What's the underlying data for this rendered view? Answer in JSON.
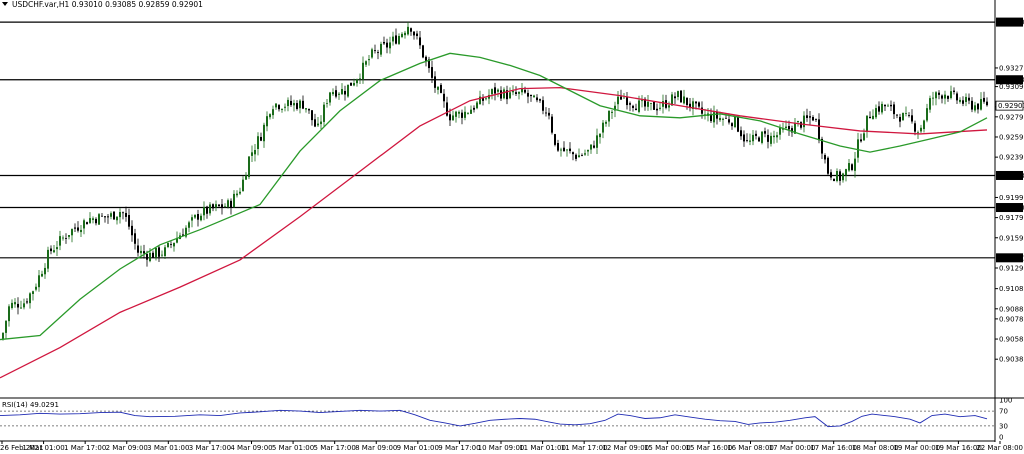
{
  "window": {
    "symbol_line": "USDCHF.var,H1  0.93010 0.93085 0.92859 0.92901",
    "menu_icon": "triangle-down-icon"
  },
  "chart_data": [
    {
      "type": "candlestick",
      "symbol": "USDCHF.var",
      "timeframe": "H1",
      "ohlc": {
        "open": 0.9301,
        "high": 0.93085,
        "low": 0.92859,
        "close": 0.92901
      },
      "ylim": [
        0.9,
        0.9385
      ],
      "y_ticks": [
        "0.93275",
        "0.93090",
        "0.92890",
        "0.92790",
        "0.92590",
        "0.92390",
        "0.91990",
        "0.91790",
        "0.91590",
        "0.91290",
        "0.91085",
        "0.90885",
        "0.90785",
        "0.90585",
        "0.90385"
      ],
      "y_tick_values": [
        0.93275,
        0.9309,
        0.9289,
        0.9279,
        0.9259,
        0.9239,
        0.9199,
        0.9179,
        0.9159,
        0.9129,
        0.91085,
        0.90885,
        0.90785,
        0.90585,
        0.90385
      ],
      "x_ticks": [
        "26 Feb 2021",
        "1 Mar 01:00",
        "1 Mar 17:00",
        "2 Mar 09:00",
        "3 Mar 01:00",
        "3 Mar 17:00",
        "4 Mar 09:00",
        "5 Mar 01:00",
        "5 Mar 17:00",
        "8 Mar 09:00",
        "9 Mar 01:00",
        "9 Mar 17:00",
        "10 Mar 09:00",
        "11 Mar 01:00",
        "11 Mar 17:00",
        "12 Mar 09:00",
        "15 Mar 00:00",
        "15 Mar 16:00",
        "16 Mar 08:00",
        "17 Mar 00:00",
        "17 Mar 16:00",
        "18 Mar 08:00",
        "19 Mar 00:00",
        "19 Mar 16:00",
        "22 Mar 08:00"
      ],
      "horizontal_lines": [
        {
          "value": 0.9373,
          "label": "0.93730"
        },
        {
          "value": 0.93158,
          "label": "0.93158"
        },
        {
          "value": 0.92208,
          "label": "0.92208"
        },
        {
          "value": 0.9189,
          "label": "0.91890"
        },
        {
          "value": 0.91391,
          "label": "0.91391"
        }
      ],
      "current_price": {
        "value": 0.92901,
        "label": "0.92901"
      },
      "price_path": [
        [
          0,
          0.905
        ],
        [
          10,
          0.9092
        ],
        [
          25,
          0.9095
        ],
        [
          35,
          0.911
        ],
        [
          50,
          0.9145
        ],
        [
          70,
          0.9165
        ],
        [
          90,
          0.9178
        ],
        [
          110,
          0.918
        ],
        [
          122,
          0.9186
        ],
        [
          128,
          0.9175
        ],
        [
          138,
          0.9145
        ],
        [
          150,
          0.9142
        ],
        [
          165,
          0.9145
        ],
        [
          178,
          0.916
        ],
        [
          190,
          0.9172
        ],
        [
          200,
          0.9183
        ],
        [
          215,
          0.9188
        ],
        [
          230,
          0.9192
        ],
        [
          242,
          0.921
        ],
        [
          250,
          0.924
        ],
        [
          262,
          0.9262
        ],
        [
          272,
          0.9292
        ],
        [
          290,
          0.9291
        ],
        [
          305,
          0.9292
        ],
        [
          318,
          0.9265
        ],
        [
          330,
          0.9305
        ],
        [
          345,
          0.9305
        ],
        [
          360,
          0.9322
        ],
        [
          372,
          0.934
        ],
        [
          388,
          0.935
        ],
        [
          400,
          0.936
        ],
        [
          410,
          0.9372
        ],
        [
          422,
          0.9345
        ],
        [
          435,
          0.931
        ],
        [
          450,
          0.928
        ],
        [
          465,
          0.9283
        ],
        [
          480,
          0.9293
        ],
        [
          495,
          0.9305
        ],
        [
          510,
          0.93
        ],
        [
          525,
          0.9302
        ],
        [
          540,
          0.929
        ],
        [
          550,
          0.9283
        ],
        [
          555,
          0.925
        ],
        [
          565,
          0.9245
        ],
        [
          578,
          0.924
        ],
        [
          590,
          0.9245
        ],
        [
          600,
          0.9262
        ],
        [
          612,
          0.9285
        ],
        [
          622,
          0.93
        ],
        [
          635,
          0.9292
        ],
        [
          648,
          0.9288
        ],
        [
          662,
          0.929
        ],
        [
          678,
          0.93
        ],
        [
          692,
          0.929
        ],
        [
          705,
          0.928
        ],
        [
          720,
          0.9278
        ],
        [
          735,
          0.9275
        ],
        [
          748,
          0.9252
        ],
        [
          760,
          0.926
        ],
        [
          772,
          0.9258
        ],
        [
          785,
          0.9265
        ],
        [
          800,
          0.9272
        ],
        [
          815,
          0.928
        ],
        [
          828,
          0.9225
        ],
        [
          840,
          0.9218
        ],
        [
          852,
          0.923
        ],
        [
          862,
          0.9262
        ],
        [
          872,
          0.9285
        ],
        [
          885,
          0.929
        ],
        [
          895,
          0.9283
        ],
        [
          910,
          0.9275
        ],
        [
          920,
          0.9265
        ],
        [
          932,
          0.9298
        ],
        [
          945,
          0.9303
        ],
        [
          960,
          0.9295
        ],
        [
          975,
          0.929
        ],
        [
          987,
          0.9292
        ]
      ],
      "sma_fast_path": [
        [
          0,
          0.9058
        ],
        [
          40,
          0.9062
        ],
        [
          80,
          0.9098
        ],
        [
          120,
          0.9128
        ],
        [
          160,
          0.9152
        ],
        [
          200,
          0.9167
        ],
        [
          260,
          0.9192
        ],
        [
          300,
          0.9245
        ],
        [
          340,
          0.9285
        ],
        [
          380,
          0.9315
        ],
        [
          420,
          0.9332
        ],
        [
          450,
          0.9342
        ],
        [
          480,
          0.9338
        ],
        [
          510,
          0.933
        ],
        [
          540,
          0.932
        ],
        [
          570,
          0.9305
        ],
        [
          600,
          0.929
        ],
        [
          640,
          0.928
        ],
        [
          680,
          0.9278
        ],
        [
          720,
          0.9282
        ],
        [
          760,
          0.9275
        ],
        [
          800,
          0.9262
        ],
        [
          840,
          0.925
        ],
        [
          870,
          0.9244
        ],
        [
          900,
          0.925
        ],
        [
          930,
          0.9257
        ],
        [
          960,
          0.9264
        ],
        [
          987,
          0.9278
        ]
      ],
      "sma_slow_path": [
        [
          0,
          0.902
        ],
        [
          60,
          0.905
        ],
        [
          120,
          0.9085
        ],
        [
          180,
          0.911
        ],
        [
          240,
          0.9137
        ],
        [
          300,
          0.918
        ],
        [
          360,
          0.9225
        ],
        [
          420,
          0.927
        ],
        [
          470,
          0.9295
        ],
        [
          520,
          0.9307
        ],
        [
          560,
          0.9308
        ],
        [
          620,
          0.93
        ],
        [
          680,
          0.929
        ],
        [
          740,
          0.928
        ],
        [
          800,
          0.9272
        ],
        [
          860,
          0.9265
        ],
        [
          920,
          0.9262
        ],
        [
          987,
          0.9266
        ]
      ],
      "colors": {
        "up": "#1a6b1a",
        "down": "#000000",
        "fast_ma": "#2a9a2a",
        "slow_ma": "#d0173f",
        "level_line": "#000000",
        "rsi": "#1f2bb3"
      }
    },
    {
      "type": "line",
      "title": "RSI(14) 49.0291",
      "ylim": [
        0,
        100
      ],
      "y_ticks": [
        "100",
        "70",
        "30",
        "0"
      ],
      "y_tick_values": [
        100,
        70,
        30,
        0
      ],
      "levels": [
        70,
        30
      ],
      "rsi_path": [
        [
          0,
          58
        ],
        [
          20,
          60
        ],
        [
          40,
          64
        ],
        [
          60,
          62
        ],
        [
          80,
          63
        ],
        [
          100,
          66
        ],
        [
          120,
          67
        ],
        [
          135,
          58
        ],
        [
          150,
          55
        ],
        [
          175,
          56
        ],
        [
          200,
          60
        ],
        [
          220,
          58
        ],
        [
          240,
          65
        ],
        [
          260,
          68
        ],
        [
          280,
          72
        ],
        [
          300,
          70
        ],
        [
          320,
          66
        ],
        [
          340,
          69
        ],
        [
          360,
          72
        ],
        [
          380,
          70
        ],
        [
          400,
          72
        ],
        [
          415,
          60
        ],
        [
          430,
          45
        ],
        [
          445,
          38
        ],
        [
          460,
          30
        ],
        [
          475,
          37
        ],
        [
          490,
          45
        ],
        [
          505,
          48
        ],
        [
          520,
          50
        ],
        [
          535,
          48
        ],
        [
          550,
          40
        ],
        [
          560,
          35
        ],
        [
          575,
          33
        ],
        [
          590,
          36
        ],
        [
          605,
          45
        ],
        [
          618,
          62
        ],
        [
          630,
          58
        ],
        [
          645,
          50
        ],
        [
          660,
          52
        ],
        [
          675,
          60
        ],
        [
          690,
          54
        ],
        [
          705,
          48
        ],
        [
          720,
          44
        ],
        [
          735,
          42
        ],
        [
          748,
          34
        ],
        [
          760,
          38
        ],
        [
          775,
          40
        ],
        [
          790,
          45
        ],
        [
          805,
          52
        ],
        [
          815,
          55
        ],
        [
          828,
          28
        ],
        [
          840,
          30
        ],
        [
          852,
          42
        ],
        [
          862,
          56
        ],
        [
          872,
          62
        ],
        [
          885,
          58
        ],
        [
          895,
          55
        ],
        [
          910,
          48
        ],
        [
          920,
          38
        ],
        [
          932,
          58
        ],
        [
          945,
          62
        ],
        [
          960,
          55
        ],
        [
          975,
          58
        ],
        [
          987,
          49
        ]
      ]
    }
  ]
}
